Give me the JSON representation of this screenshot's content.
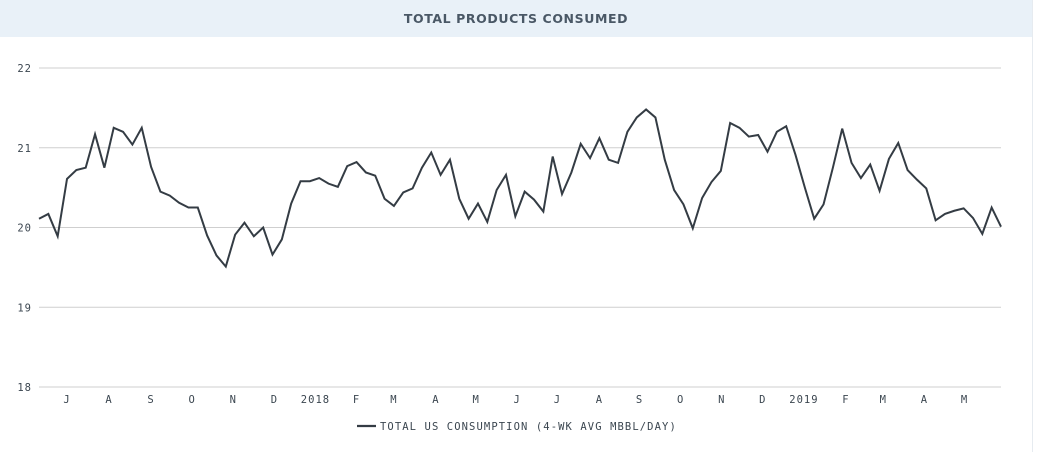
{
  "header": {
    "title": "TOTAL PRODUCTS CONSUMED"
  },
  "colors": {
    "header_bg": "#e9f1f8",
    "line": "#343c44",
    "grid": "#cfcfcf",
    "text": "#3b4650"
  },
  "chart_data": {
    "type": "line",
    "title": "TOTAL PRODUCTS CONSUMED",
    "xlabel": "",
    "ylabel": "",
    "ylim": [
      18,
      22
    ],
    "yticks": [
      18,
      19,
      20,
      21,
      22
    ],
    "grid": true,
    "legend_position": "bottom-center",
    "xtick_labels": [
      "J",
      "A",
      "S",
      "O",
      "N",
      "D",
      "2018",
      "F",
      "M",
      "A",
      "M",
      "J",
      "J",
      "A",
      "S",
      "O",
      "N",
      "D",
      "2019",
      "F",
      "M",
      "A",
      "M"
    ],
    "xtick_index": [
      3,
      7.5,
      12,
      16.4,
      20.8,
      25.2,
      29.6,
      34,
      38,
      42.5,
      46.8,
      51.2,
      55.5,
      60,
      64.3,
      68.7,
      73.1,
      77.5,
      81.9,
      86.4,
      90.4,
      94.8,
      99.1
    ],
    "series": [
      {
        "name": "TOTAL US CONSUMPTION (4-WK AVG MBBL/DAY)",
        "color": "#343c44",
        "values": [
          20.11,
          20.17,
          19.89,
          20.61,
          20.72,
          20.75,
          21.17,
          20.75,
          21.25,
          21.2,
          21.04,
          21.25,
          20.76,
          20.45,
          20.4,
          20.31,
          20.25,
          20.25,
          19.9,
          19.65,
          19.51,
          19.91,
          20.06,
          19.89,
          20.0,
          19.66,
          19.85,
          20.3,
          20.58,
          20.58,
          20.62,
          20.55,
          20.51,
          20.77,
          20.82,
          20.69,
          20.65,
          20.36,
          20.27,
          20.44,
          20.49,
          20.75,
          20.94,
          20.66,
          20.85,
          20.36,
          20.11,
          20.3,
          20.07,
          20.47,
          20.66,
          20.14,
          20.45,
          20.35,
          20.2,
          20.89,
          20.42,
          20.69,
          21.05,
          20.87,
          21.12,
          20.85,
          20.81,
          21.2,
          21.38,
          21.48,
          21.38,
          20.85,
          20.47,
          20.29,
          19.99,
          20.37,
          20.57,
          20.71,
          21.31,
          21.25,
          21.14,
          21.16,
          20.95,
          21.2,
          21.27,
          20.91,
          20.5,
          20.11,
          20.29,
          20.75,
          21.24,
          20.81,
          20.62,
          20.79,
          20.46,
          20.86,
          21.06,
          20.72,
          20.6,
          20.49,
          20.09,
          20.17,
          20.21,
          20.24,
          20.12,
          19.92,
          20.25,
          20.01
        ]
      }
    ]
  }
}
